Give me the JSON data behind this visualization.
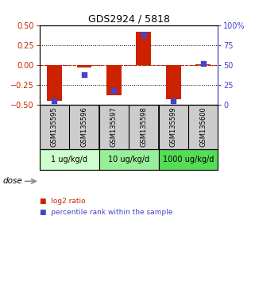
{
  "title": "GDS2924 / 5818",
  "samples": [
    "GSM135595",
    "GSM135596",
    "GSM135597",
    "GSM135598",
    "GSM135599",
    "GSM135600"
  ],
  "log2_ratio": [
    -0.45,
    -0.03,
    -0.38,
    0.42,
    -0.43,
    0.01
  ],
  "percentile_rank": [
    5,
    38,
    18,
    88,
    5,
    52
  ],
  "ylim_left": [
    -0.5,
    0.5
  ],
  "ylim_right": [
    0,
    100
  ],
  "yticks_left": [
    -0.5,
    -0.25,
    0,
    0.25,
    0.5
  ],
  "yticks_right": [
    0,
    25,
    50,
    75,
    100
  ],
  "ytick_labels_right": [
    "0",
    "25",
    "50",
    "75",
    "100%"
  ],
  "hlines_dotted": [
    -0.25,
    0.0,
    0.25
  ],
  "hline_red_dashed": 0,
  "bar_color": "#cc2200",
  "square_color": "#4444cc",
  "dose_groups": [
    {
      "label": "1 ug/kg/d",
      "start": 0,
      "end": 1,
      "color": "#ccffcc"
    },
    {
      "label": "10 ug/kg/d",
      "start": 2,
      "end": 3,
      "color": "#99ee99"
    },
    {
      "label": "1000 ug/kg/d",
      "start": 4,
      "end": 5,
      "color": "#55dd55"
    }
  ],
  "dose_label": "dose",
  "legend": [
    {
      "label": "log2 ratio",
      "color": "#cc2200"
    },
    {
      "label": "percentile rank within the sample",
      "color": "#4444cc"
    }
  ],
  "sample_box_color": "#cccccc",
  "bar_width": 0.5,
  "square_size": 18,
  "title_fontsize": 9,
  "tick_fontsize": 7,
  "sample_fontsize": 6,
  "dose_fontsize": 7,
  "legend_fontsize": 6.5
}
